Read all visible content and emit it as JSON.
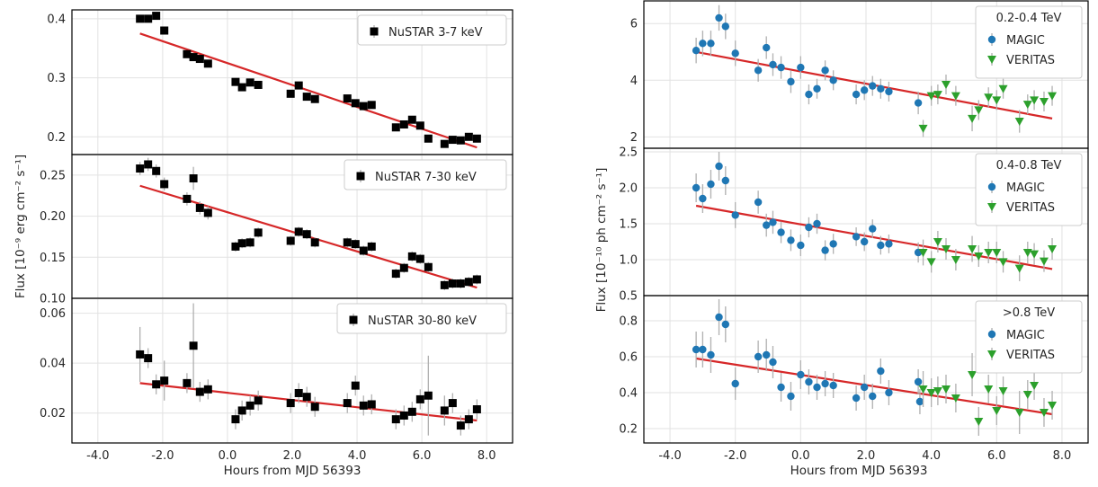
{
  "colors": {
    "fit": "#d62728",
    "magic": "#1f77b4",
    "veritas": "#2ca02c",
    "nustar": "#000000",
    "errorbar": "#b0b0b0",
    "grid": "#e2e2e2",
    "axis": "#000000"
  },
  "left_figure": {
    "xlabel": "Hours from MJD 56393",
    "ylabel": "Flux [10⁻⁹ erg cm⁻² s⁻¹]"
  },
  "right_figure": {
    "xlabel": "Hours from MJD 56393",
    "ylabel": "Flux [10⁻¹⁰ ph cm⁻² s⁻¹]"
  },
  "chart_data": [
    {
      "type": "scatter",
      "xlabel": "Hours from MJD 56393",
      "xlim": [
        -4.8,
        8.8
      ],
      "xticks": [
        -4,
        -2,
        0,
        2,
        4,
        6,
        8
      ],
      "xticklabels": [
        "-4.0",
        "-2.0",
        "0.0",
        "2.0",
        "4.0",
        "6.0",
        "8.0"
      ],
      "ylim": [
        0.17,
        0.415
      ],
      "yticks": [
        0.2,
        0.3,
        0.4
      ],
      "yticklabels": [
        "0.2",
        "0.3",
        "0.4"
      ],
      "legend_title": "",
      "legend_position": "top-right",
      "grid": true,
      "series": [
        {
          "name": "NuSTAR 3-7 keV",
          "marker": "square",
          "x": [
            -2.7,
            -2.45,
            -2.2,
            -1.95,
            -1.25,
            -1.05,
            -0.85,
            -0.6,
            0.25,
            0.45,
            0.7,
            0.95,
            1.95,
            2.2,
            2.45,
            2.7,
            3.7,
            3.95,
            4.2,
            4.45,
            5.2,
            5.45,
            5.7,
            5.95,
            6.2,
            6.7,
            6.95,
            7.2,
            7.45,
            7.7
          ],
          "y": [
            0.4,
            0.4,
            0.405,
            0.38,
            0.34,
            0.335,
            0.332,
            0.324,
            0.293,
            0.284,
            0.292,
            0.288,
            0.273,
            0.287,
            0.268,
            0.264,
            0.265,
            0.257,
            0.252,
            0.254,
            0.216,
            0.221,
            0.229,
            0.219,
            0.197,
            0.188,
            0.195,
            0.194,
            0.2,
            0.197
          ],
          "err": [
            0.004,
            0.004,
            0.004,
            0.004,
            0.004,
            0.004,
            0.004,
            0.004,
            0.004,
            0.004,
            0.004,
            0.004,
            0.004,
            0.004,
            0.004,
            0.004,
            0.004,
            0.004,
            0.004,
            0.004,
            0.004,
            0.004,
            0.004,
            0.004,
            0.004,
            0.004,
            0.004,
            0.004,
            0.004,
            0.004
          ]
        }
      ],
      "fit": {
        "x": [
          -2.7,
          7.7
        ],
        "y": [
          0.375,
          0.182
        ]
      }
    },
    {
      "type": "scatter",
      "xlabel": "Hours from MJD 56393",
      "xlim": [
        -4.8,
        8.8
      ],
      "xticks": [
        -4,
        -2,
        0,
        2,
        4,
        6,
        8
      ],
      "xticklabels": [
        "-4.0",
        "-2.0",
        "0.0",
        "2.0",
        "4.0",
        "6.0",
        "8.0"
      ],
      "ylim": [
        0.1,
        0.275
      ],
      "yticks": [
        0.1,
        0.15,
        0.2,
        0.25
      ],
      "yticklabels": [
        "0.10",
        "0.15",
        "0.20",
        "0.25"
      ],
      "legend_title": "",
      "legend_position": "top-right",
      "grid": true,
      "series": [
        {
          "name": "NuSTAR 7-30 keV",
          "marker": "square",
          "x": [
            -2.7,
            -2.45,
            -2.2,
            -1.95,
            -1.25,
            -1.05,
            -0.85,
            -0.6,
            0.25,
            0.45,
            0.7,
            0.95,
            1.95,
            2.2,
            2.45,
            2.7,
            3.7,
            3.95,
            4.2,
            4.45,
            5.2,
            5.45,
            5.7,
            5.95,
            6.2,
            6.7,
            6.95,
            7.2,
            7.45,
            7.7
          ],
          "y": [
            0.258,
            0.263,
            0.255,
            0.239,
            0.221,
            0.246,
            0.21,
            0.204,
            0.163,
            0.167,
            0.168,
            0.18,
            0.17,
            0.181,
            0.178,
            0.168,
            0.168,
            0.166,
            0.158,
            0.163,
            0.13,
            0.137,
            0.151,
            0.148,
            0.138,
            0.116,
            0.118,
            0.118,
            0.12,
            0.123
          ],
          "err": [
            0.008,
            0.008,
            0.008,
            0.008,
            0.008,
            0.014,
            0.008,
            0.008,
            0.006,
            0.006,
            0.006,
            0.006,
            0.006,
            0.006,
            0.006,
            0.006,
            0.006,
            0.006,
            0.006,
            0.006,
            0.006,
            0.006,
            0.006,
            0.006,
            0.006,
            0.006,
            0.006,
            0.006,
            0.006,
            0.006
          ]
        }
      ],
      "fit": {
        "x": [
          -2.7,
          7.7
        ],
        "y": [
          0.237,
          0.113
        ]
      }
    },
    {
      "type": "scatter",
      "xlabel": "Hours from MJD 56393",
      "xlim": [
        -4.8,
        8.8
      ],
      "xticks": [
        -4,
        -2,
        0,
        2,
        4,
        6,
        8
      ],
      "xticklabels": [
        "-4.0",
        "-2.0",
        "0.0",
        "2.0",
        "4.0",
        "6.0",
        "8.0"
      ],
      "ylim": [
        0.008,
        0.066
      ],
      "yticks": [
        0.02,
        0.04,
        0.06
      ],
      "yticklabels": [
        "0.02",
        "0.04",
        "0.06"
      ],
      "legend_title": "",
      "legend_position": "top-right",
      "grid": true,
      "series": [
        {
          "name": "NuSTAR 30-80 keV",
          "marker": "square",
          "x": [
            -2.7,
            -2.45,
            -2.2,
            -1.95,
            -1.25,
            -1.05,
            -0.85,
            -0.6,
            0.25,
            0.45,
            0.7,
            0.95,
            1.95,
            2.2,
            2.45,
            2.7,
            3.7,
            3.95,
            4.2,
            4.45,
            5.2,
            5.45,
            5.7,
            5.95,
            6.2,
            6.7,
            6.95,
            7.2,
            7.45,
            7.7
          ],
          "y": [
            0.0435,
            0.042,
            0.0315,
            0.033,
            0.032,
            0.047,
            0.0285,
            0.0295,
            0.0175,
            0.021,
            0.023,
            0.025,
            0.024,
            0.028,
            0.0265,
            0.0225,
            0.024,
            0.031,
            0.023,
            0.0235,
            0.0175,
            0.019,
            0.0205,
            0.0255,
            0.027,
            0.021,
            0.024,
            0.015,
            0.0175,
            0.0215
          ],
          "err": [
            0.011,
            0.004,
            0.004,
            0.008,
            0.004,
            0.017,
            0.004,
            0.004,
            0.004,
            0.004,
            0.004,
            0.004,
            0.004,
            0.004,
            0.004,
            0.004,
            0.004,
            0.004,
            0.004,
            0.004,
            0.004,
            0.004,
            0.004,
            0.004,
            0.016,
            0.006,
            0.004,
            0.004,
            0.004,
            0.004
          ]
        }
      ],
      "fit": {
        "x": [
          -2.7,
          7.7
        ],
        "y": [
          0.032,
          0.017
        ]
      }
    },
    {
      "type": "scatter",
      "xlabel": "Hours from MJD 56393",
      "xlim": [
        -4.8,
        8.8
      ],
      "xticks": [
        -4,
        -2,
        0,
        2,
        4,
        6,
        8
      ],
      "xticklabels": [
        "-4.0",
        "-2.0",
        "0.0",
        "2.0",
        "4.0",
        "6.0",
        "8.0"
      ],
      "ylim": [
        1.6,
        6.8
      ],
      "yticks": [
        2,
        4,
        6
      ],
      "yticklabels": [
        "2",
        "4",
        "6"
      ],
      "legend_title": "0.2-0.4 TeV",
      "legend_position": "top-right",
      "grid": true,
      "series": [
        {
          "name": "MAGIC",
          "marker": "circle",
          "x": [
            -3.2,
            -3.0,
            -2.75,
            -2.5,
            -2.3,
            -2.0,
            -1.3,
            -1.05,
            -0.85,
            -0.6,
            -0.3,
            0.0,
            0.25,
            0.5,
            0.75,
            1.0,
            1.7,
            1.95,
            2.2,
            2.45,
            2.7,
            3.6
          ],
          "y": [
            5.05,
            5.3,
            5.3,
            6.2,
            5.9,
            4.95,
            4.35,
            5.15,
            4.55,
            4.45,
            3.95,
            4.45,
            3.5,
            3.7,
            4.35,
            4.0,
            3.5,
            3.65,
            3.8,
            3.7,
            3.6,
            3.2
          ],
          "err": [
            0.45,
            0.45,
            0.45,
            0.45,
            0.45,
            0.45,
            0.4,
            0.4,
            0.4,
            0.4,
            0.4,
            0.4,
            0.35,
            0.35,
            0.35,
            0.35,
            0.35,
            0.35,
            0.35,
            0.35,
            0.35,
            0.4
          ]
        },
        {
          "name": "VERITAS",
          "marker": "triangle-down",
          "x": [
            3.75,
            4.0,
            4.2,
            4.45,
            4.75,
            5.25,
            5.45,
            5.75,
            6.0,
            6.2,
            6.7,
            6.95,
            7.15,
            7.45,
            7.7
          ],
          "y": [
            2.3,
            3.45,
            3.5,
            3.85,
            3.45,
            2.65,
            2.95,
            3.4,
            3.3,
            3.7,
            2.55,
            3.15,
            3.3,
            3.25,
            3.45
          ],
          "err": [
            0.3,
            0.35,
            0.35,
            0.35,
            0.35,
            0.45,
            0.35,
            0.35,
            0.35,
            0.35,
            0.4,
            0.35,
            0.35,
            0.35,
            0.35
          ]
        }
      ],
      "fit": {
        "x": [
          -3.2,
          7.7
        ],
        "y": [
          5.0,
          2.65
        ]
      }
    },
    {
      "type": "scatter",
      "xlabel": "Hours from MJD 56393",
      "xlim": [
        -4.8,
        8.8
      ],
      "xticks": [
        -4,
        -2,
        0,
        2,
        4,
        6,
        8
      ],
      "xticklabels": [
        "-4.0",
        "-2.0",
        "0.0",
        "2.0",
        "4.0",
        "6.0",
        "8.0"
      ],
      "ylim": [
        0.5,
        2.55
      ],
      "yticks": [
        0.5,
        1.0,
        1.5,
        2.0,
        2.5
      ],
      "yticklabels": [
        "0.5",
        "1.0",
        "1.5",
        "2.0",
        "2.5"
      ],
      "legend_title": "0.4-0.8 TeV",
      "legend_position": "top-right",
      "grid": true,
      "series": [
        {
          "name": "MAGIC",
          "marker": "circle",
          "x": [
            -3.2,
            -3.0,
            -2.75,
            -2.5,
            -2.3,
            -2.0,
            -1.3,
            -1.05,
            -0.85,
            -0.6,
            -0.3,
            0.0,
            0.25,
            0.5,
            0.75,
            1.0,
            1.7,
            1.95,
            2.2,
            2.45,
            2.7,
            3.6
          ],
          "y": [
            2.0,
            1.85,
            2.05,
            2.3,
            2.1,
            1.62,
            1.8,
            1.48,
            1.52,
            1.38,
            1.27,
            1.2,
            1.45,
            1.5,
            1.13,
            1.22,
            1.32,
            1.25,
            1.43,
            1.2,
            1.22,
            1.1
          ],
          "err": [
            0.2,
            0.2,
            0.2,
            0.2,
            0.2,
            0.18,
            0.16,
            0.16,
            0.16,
            0.15,
            0.15,
            0.15,
            0.14,
            0.14,
            0.14,
            0.14,
            0.13,
            0.13,
            0.13,
            0.13,
            0.13,
            0.14
          ]
        },
        {
          "name": "VERITAS",
          "marker": "triangle-down",
          "x": [
            3.75,
            4.0,
            4.2,
            4.45,
            4.75,
            5.25,
            5.45,
            5.75,
            6.0,
            6.2,
            6.7,
            6.95,
            7.15,
            7.45,
            7.7
          ],
          "y": [
            1.1,
            0.97,
            1.25,
            1.15,
            1.0,
            1.15,
            1.05,
            1.1,
            1.1,
            0.97,
            0.88,
            1.1,
            1.08,
            0.98,
            1.15
          ],
          "err": [
            0.18,
            0.15,
            0.15,
            0.15,
            0.15,
            0.18,
            0.15,
            0.15,
            0.15,
            0.15,
            0.18,
            0.15,
            0.15,
            0.15,
            0.15
          ]
        }
      ],
      "fit": {
        "x": [
          -3.2,
          7.7
        ],
        "y": [
          1.75,
          0.87
        ]
      }
    },
    {
      "type": "scatter",
      "xlabel": "Hours from MJD 56393",
      "xlim": [
        -4.8,
        8.8
      ],
      "xticks": [
        -4,
        -2,
        0,
        2,
        4,
        6,
        8
      ],
      "xticklabels": [
        "-4.0",
        "-2.0",
        "0.0",
        "2.0",
        "4.0",
        "6.0",
        "8.0"
      ],
      "ylim": [
        0.12,
        0.94
      ],
      "yticks": [
        0.2,
        0.4,
        0.6,
        0.8
      ],
      "yticklabels": [
        "0.2",
        "0.4",
        "0.6",
        "0.8"
      ],
      "legend_title": ">0.8 TeV",
      "legend_position": "top-right",
      "grid": true,
      "series": [
        {
          "name": "MAGIC",
          "marker": "circle",
          "x": [
            -3.2,
            -3.0,
            -2.75,
            -2.5,
            -2.3,
            -2.0,
            -1.3,
            -1.05,
            -0.85,
            -0.6,
            -0.3,
            0.0,
            0.25,
            0.5,
            0.75,
            1.0,
            1.7,
            1.95,
            2.2,
            2.45,
            2.7,
            3.6,
            3.65
          ],
          "y": [
            0.64,
            0.64,
            0.61,
            0.82,
            0.78,
            0.45,
            0.6,
            0.61,
            0.57,
            0.43,
            0.38,
            0.5,
            0.46,
            0.43,
            0.45,
            0.44,
            0.37,
            0.43,
            0.38,
            0.52,
            0.4,
            0.46,
            0.35
          ],
          "err": [
            0.1,
            0.1,
            0.1,
            0.1,
            0.1,
            0.09,
            0.09,
            0.09,
            0.09,
            0.08,
            0.08,
            0.08,
            0.07,
            0.07,
            0.07,
            0.07,
            0.07,
            0.07,
            0.07,
            0.07,
            0.07,
            0.07,
            0.07
          ]
        },
        {
          "name": "VERITAS",
          "marker": "triangle-down",
          "x": [
            3.75,
            4.0,
            4.2,
            4.45,
            4.75,
            5.25,
            5.45,
            5.75,
            6.0,
            6.2,
            6.7,
            6.95,
            7.15,
            7.45,
            7.7
          ],
          "y": [
            0.42,
            0.4,
            0.41,
            0.42,
            0.37,
            0.5,
            0.24,
            0.42,
            0.3,
            0.41,
            0.29,
            0.39,
            0.44,
            0.29,
            0.33
          ],
          "err": [
            0.1,
            0.08,
            0.08,
            0.08,
            0.08,
            0.12,
            0.08,
            0.08,
            0.08,
            0.08,
            0.12,
            0.08,
            0.08,
            0.08,
            0.08
          ]
        }
      ],
      "fit": {
        "x": [
          -3.2,
          7.7
        ],
        "y": [
          0.59,
          0.28
        ]
      }
    }
  ]
}
